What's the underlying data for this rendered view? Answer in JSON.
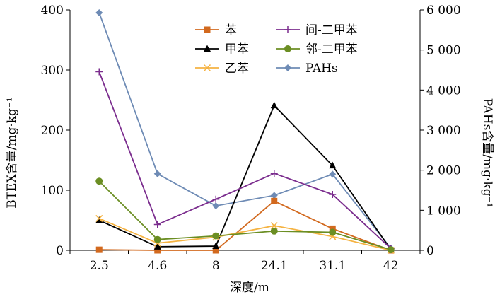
{
  "chart_data": {
    "type": "line",
    "x": [
      "2.5",
      "4.6",
      "8",
      "24.1",
      "31.1",
      "42"
    ],
    "xlabel": "深度/m",
    "ylabel_left": "BTEX含量/mg·kg⁻¹",
    "ylabel_right": "PAHs含量/mg·kg⁻¹",
    "ylim_left": [
      0,
      400
    ],
    "ylim_right": [
      0,
      6000
    ],
    "yticks_left": [
      "0",
      "100",
      "200",
      "300",
      "400"
    ],
    "yticks_right": [
      "0",
      "1 000",
      "2 000",
      "3 000",
      "4 000",
      "5 000",
      "6 000"
    ],
    "grid": false,
    "legend_position": "top-right",
    "series": [
      {
        "name": "苯",
        "axis": "left",
        "color": "#D2691E",
        "marker": "square",
        "values": [
          1,
          0,
          0,
          82,
          36,
          0
        ]
      },
      {
        "name": "甲苯",
        "axis": "left",
        "color": "#000000",
        "marker": "triangle",
        "values": [
          50,
          6,
          7,
          241,
          141,
          1
        ]
      },
      {
        "name": "乙苯",
        "axis": "left",
        "color": "#F5B342",
        "marker": "x",
        "values": [
          53,
          12,
          22,
          41,
          23,
          0
        ]
      },
      {
        "name": "间-二甲苯",
        "axis": "left",
        "color": "#7B2D8E",
        "marker": "plus",
        "values": [
          297,
          43,
          85,
          128,
          93,
          3
        ]
      },
      {
        "name": "邻-二甲苯",
        "axis": "left",
        "color": "#6B8E23",
        "marker": "circle",
        "values": [
          115,
          18,
          24,
          32,
          30,
          1
        ]
      },
      {
        "name": "PAHs",
        "axis": "right",
        "color": "#6E8BB5",
        "marker": "diamond",
        "values": [
          5930,
          1910,
          1110,
          1370,
          1900,
          50
        ]
      }
    ]
  }
}
